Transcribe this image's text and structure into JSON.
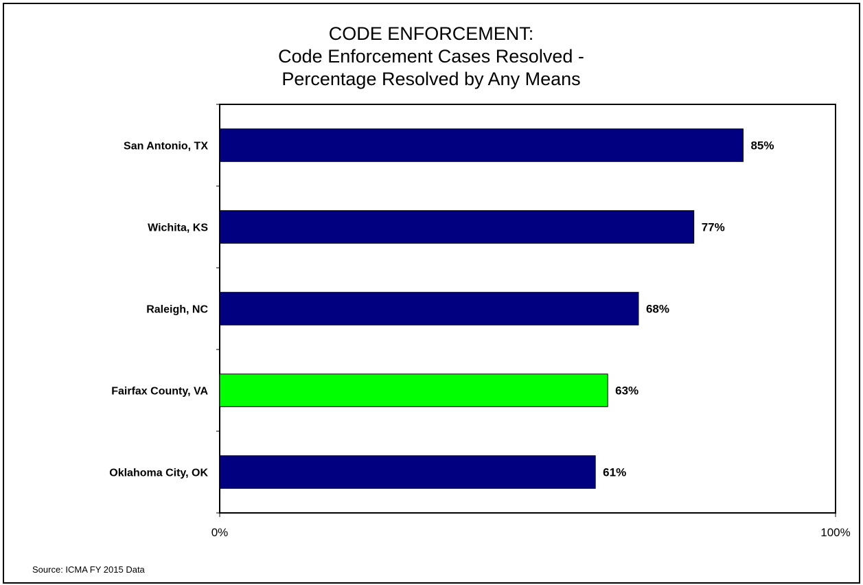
{
  "chart_data": {
    "type": "bar",
    "orientation": "horizontal",
    "title_lines": [
      "CODE ENFORCEMENT:",
      "Code Enforcement Cases Resolved -",
      "Percentage Resolved by Any Means"
    ],
    "categories": [
      "San Antonio, TX",
      "Wichita, KS",
      "Raleigh, NC",
      "Fairfax County, VA",
      "Oklahoma City, OK"
    ],
    "values": [
      85,
      77,
      68,
      63,
      61
    ],
    "value_labels": [
      "85%",
      "77%",
      "68%",
      "63%",
      "61%"
    ],
    "xlim": [
      0,
      100
    ],
    "x_tick_values": [
      0,
      100
    ],
    "x_tick_labels": [
      "0%",
      "100%"
    ],
    "grid": false,
    "colors": {
      "default": "#000080",
      "highlight": "#00ff00"
    },
    "highlight_category": "Fairfax County, VA",
    "source": "Source: ICMA FY 2015 Data"
  }
}
